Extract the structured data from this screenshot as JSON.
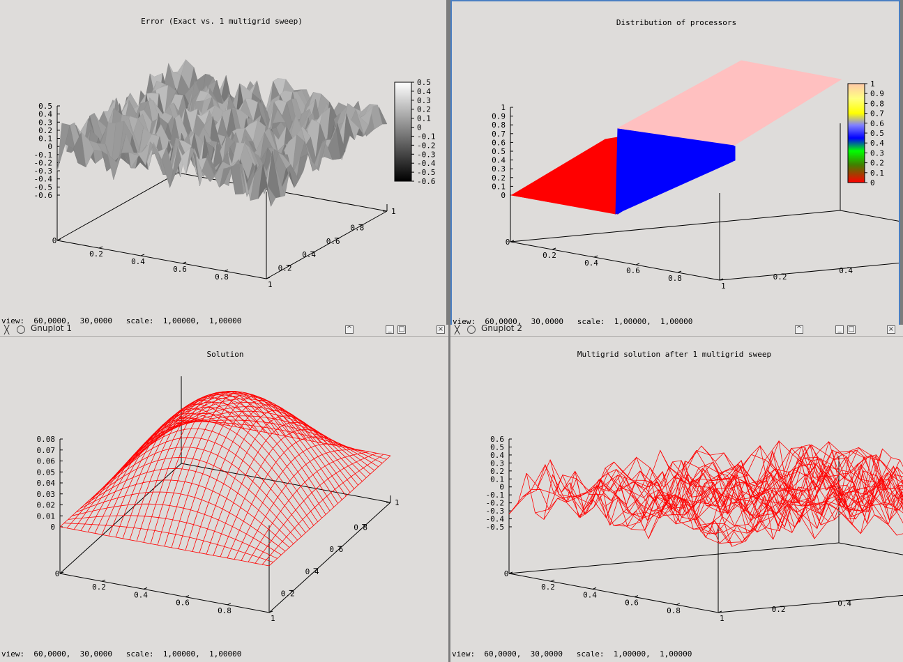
{
  "windows": [
    {
      "id": "w1",
      "title": "",
      "plot_title": "Error (Exact vs. 1 multigrid sweep)",
      "status": "view:  60,0000,  30,0000   scale:  1,00000,  1,00000",
      "colorbox_labels": [
        "0.5",
        "0.4",
        "0.3",
        "0.2",
        "0.1",
        "0",
        "-0.1",
        "-0.2",
        "-0.3",
        "-0.4",
        "-0.5",
        "-0.6"
      ],
      "z_labels": [
        "0.5",
        "0.4",
        "0.3",
        "0.2",
        "0.1",
        "0",
        "-0.1",
        "-0.2",
        "-0.3",
        "-0.4",
        "-0.5",
        "-0.6"
      ]
    },
    {
      "id": "w2",
      "title": "",
      "plot_title": "Distribution of processors",
      "status": "view:  60,0000,  30,0000   scale:  1,00000,  1,00000",
      "colorbox_labels": [
        "1",
        "0.9",
        "0.8",
        "0.7",
        "0.6",
        "0.5",
        "0.4",
        "0.3",
        "0.2",
        "0.1",
        "0"
      ],
      "z_labels": [
        "1",
        "0.9",
        "0.8",
        "0.7",
        "0.6",
        "0.5",
        "0.4",
        "0.3",
        "0.2",
        "0.1",
        "0"
      ]
    },
    {
      "id": "w3",
      "title": "Gnuplot 1",
      "plot_title": "Solution",
      "status": "view:  60,0000,  30,0000   scale:  1,00000,  1,00000",
      "z_labels": [
        "0.08",
        "0.07",
        "0.06",
        "0.05",
        "0.04",
        "0.03",
        "0.02",
        "0.01",
        "0"
      ]
    },
    {
      "id": "w4",
      "title": "Gnuplot 2",
      "plot_title": "Multigrid solution after 1 multigrid sweep",
      "status": "view:  60,0000,  30,0000   scale:  1,00000,  1,00000",
      "z_labels": [
        "0.6",
        "0.5",
        "0.4",
        "0.3",
        "0.2",
        "0.1",
        "0",
        "-0.1",
        "-0.2",
        "-0.3",
        "-0.4",
        "-0.5"
      ]
    }
  ],
  "axis": {
    "x_ticks": [
      "0",
      "0.2",
      "0.4",
      "0.6",
      "0.8",
      "1"
    ],
    "y_ticks": [
      "0",
      "0.2",
      "0.4",
      "0.6",
      "0.8",
      "1"
    ]
  },
  "colors": {
    "window_bg": "#dedcda",
    "grey_surface": "#9a9a9a",
    "red": "#ff0000",
    "blue": "#0000ff",
    "pink": "#ffc0c0",
    "active_border": "#4a7fc2"
  },
  "chart_data": [
    {
      "type": "surface",
      "title": "Error (Exact vs. 1 multigrid sweep)",
      "xlim": [
        0,
        1
      ],
      "ylim": [
        0,
        1
      ],
      "zlim": [
        -0.6,
        0.5
      ],
      "palette": "grey",
      "view": [
        60,
        30
      ]
    },
    {
      "type": "surface",
      "title": "Distribution of processors",
      "xlim": [
        0,
        1
      ],
      "ylim": [
        0,
        1
      ],
      "zlim": [
        0,
        1
      ],
      "cblim": [
        0,
        1
      ],
      "regions": [
        {
          "x": [
            0,
            0.5
          ],
          "value": 0,
          "color": "red"
        },
        {
          "x": [
            0.5,
            1
          ],
          "y": [
            0,
            0.5
          ],
          "value": 0.5,
          "color": "blue"
        },
        {
          "x": [
            0.5,
            1
          ],
          "y": [
            0.5,
            1
          ],
          "value": 1,
          "color": "pink"
        }
      ],
      "view": [
        60,
        30
      ]
    },
    {
      "type": "surface",
      "title": "Solution",
      "xlim": [
        0,
        1
      ],
      "ylim": [
        0,
        1
      ],
      "zlim": [
        0,
        0.08
      ],
      "peak": 0.08,
      "style": "wireframe",
      "view": [
        60,
        30
      ]
    },
    {
      "type": "surface",
      "title": "Multigrid solution after 1 multigrid sweep",
      "xlim": [
        0,
        1
      ],
      "ylim": [
        0,
        1
      ],
      "zlim": [
        -0.5,
        0.6
      ],
      "style": "wireframe",
      "view": [
        60,
        30
      ]
    }
  ]
}
